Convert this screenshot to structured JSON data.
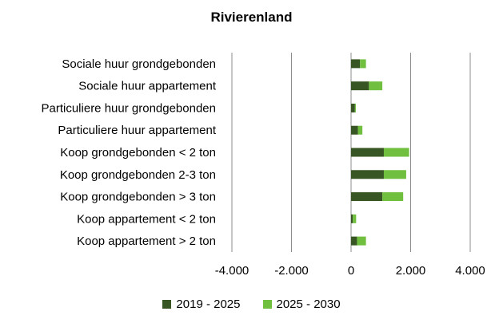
{
  "chart_data": {
    "type": "bar",
    "orientation": "horizontal",
    "stacked": true,
    "title": "Rivierenland",
    "categories": [
      "Sociale huur grondgebonden",
      "Sociale huur appartement",
      "Particuliere huur grondgebonden",
      "Particuliere huur appartement",
      "Koop grondgebonden < 2 ton",
      "Koop grondgebonden 2-3 ton",
      "Koop grondgebonden > 3 ton",
      "Koop appartement < 2 ton",
      "Koop appartement > 2 ton"
    ],
    "series": [
      {
        "name": "2019 - 2025",
        "color": "#375623",
        "values": [
          300,
          600,
          130,
          230,
          1100,
          1100,
          1050,
          60,
          200
        ]
      },
      {
        "name": "2025 - 2030",
        "color": "#70bf3f",
        "values": [
          200,
          450,
          30,
          150,
          850,
          750,
          700,
          110,
          300
        ]
      }
    ],
    "xlim": [
      -4000,
      4000
    ],
    "xticks": [
      -4000,
      -2000,
      0,
      2000,
      4000
    ],
    "xtick_labels": [
      "-4.000",
      "-2.000",
      "0",
      "2.000",
      "4.000"
    ],
    "grid": true,
    "legend": "bottom",
    "xlabel": "",
    "ylabel": ""
  }
}
